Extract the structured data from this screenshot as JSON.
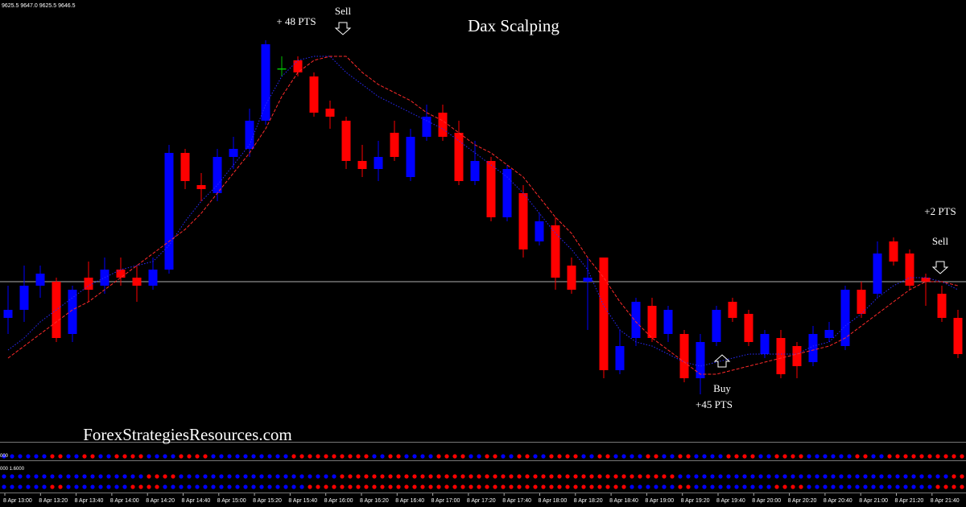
{
  "header_text": "9625.5 9647.0 9625.5 9646.5",
  "watermark": "ForexStrategiesResources.com",
  "indicator_labels": [
    "000",
    "000 1.6000"
  ],
  "annotations": [
    "+ 48 PTS",
    "Sell",
    "+2 PTS",
    "Sell",
    "Buy",
    "+45 PTS"
  ],
  "chart_data": {
    "type": "candlestick",
    "title": "Dax Scalping",
    "categories": [
      null,
      null,
      null,
      null,
      null,
      null,
      null,
      null,
      null,
      null,
      null,
      null,
      null,
      null,
      null,
      null,
      null,
      null,
      null,
      null,
      null,
      null,
      null,
      null,
      null,
      null,
      null,
      null,
      null,
      null,
      null,
      null,
      null,
      null,
      null,
      null,
      null,
      null,
      null,
      null,
      null,
      null,
      null,
      null,
      null,
      null,
      null,
      null,
      null,
      null,
      null,
      null,
      null,
      null,
      null,
      null,
      null,
      null,
      null,
      null
    ],
    "open": [
      9542,
      9546,
      9558,
      9560,
      9534,
      9562,
      9558,
      9566,
      9562,
      9558,
      9566,
      9624,
      9608,
      9604,
      9622,
      9626,
      9640,
      9666,
      9670,
      9662,
      9646,
      9640,
      9620,
      9616,
      9634,
      9612,
      9632,
      9644,
      9634,
      9610,
      9620,
      9592,
      9604,
      9580,
      9588,
      9568,
      9560,
      9572,
      9516,
      9532,
      9548,
      9534,
      9534,
      9512,
      9530,
      9550,
      9544,
      9524,
      9532,
      9528,
      9520,
      9532,
      9528,
      9556,
      9554,
      9580,
      9574,
      9562,
      9554,
      9542
    ],
    "high": [
      9558,
      9568,
      9568,
      9562,
      9558,
      9570,
      9572,
      9572,
      9568,
      9572,
      9628,
      9626,
      9614,
      9626,
      9632,
      9646,
      9680,
      9672,
      9672,
      9664,
      9650,
      9642,
      9628,
      9630,
      9640,
      9636,
      9648,
      9648,
      9640,
      9630,
      9622,
      9618,
      9608,
      9594,
      9592,
      9572,
      9572,
      9572,
      9536,
      9552,
      9552,
      9548,
      9536,
      9534,
      9548,
      9552,
      9546,
      9536,
      9536,
      9530,
      9538,
      9540,
      9558,
      9560,
      9580,
      9582,
      9576,
      9564,
      9558,
      9546
    ],
    "low": [
      9534,
      9540,
      9552,
      9530,
      9530,
      9550,
      9554,
      9558,
      9550,
      9556,
      9564,
      9606,
      9600,
      9600,
      9616,
      9622,
      9638,
      9662,
      9662,
      9642,
      9636,
      9616,
      9612,
      9610,
      9620,
      9610,
      9630,
      9630,
      9608,
      9608,
      9590,
      9590,
      9572,
      9578,
      9556,
      9554,
      9536,
      9512,
      9514,
      9528,
      9530,
      9530,
      9510,
      9504,
      9528,
      9540,
      9528,
      9522,
      9512,
      9512,
      9518,
      9530,
      9526,
      9542,
      9552,
      9568,
      9556,
      9548,
      9540,
      9522
    ],
    "close": [
      9546,
      9558,
      9564,
      9532,
      9556,
      9556,
      9566,
      9562,
      9558,
      9566,
      9624,
      9610,
      9606,
      9622,
      9626,
      9640,
      9678,
      9666,
      9664,
      9644,
      9642,
      9620,
      9616,
      9622,
      9622,
      9632,
      9642,
      9632,
      9610,
      9620,
      9592,
      9616,
      9576,
      9590,
      9562,
      9556,
      9562,
      9516,
      9528,
      9550,
      9532,
      9546,
      9512,
      9530,
      9546,
      9542,
      9530,
      9534,
      9514,
      9518,
      9534,
      9536,
      9556,
      9544,
      9574,
      9570,
      9558,
      9560,
      9542,
      9524
    ],
    "up_color": "#0000ff",
    "down_color": "#ff0000",
    "doji_color": "#00c000",
    "moving_averages": [
      {
        "color": "#2a2aff",
        "style": "dotted",
        "values": [
          9526,
          9532,
          9540,
          9546,
          9552,
          9558,
          9562,
          9566,
          9568,
          9570,
          9578,
          9590,
          9600,
          9608,
          9618,
          9628,
          9648,
          9662,
          9670,
          9672,
          9672,
          9664,
          9658,
          9652,
          9648,
          9644,
          9640,
          9636,
          9630,
          9624,
          9618,
          9612,
          9604,
          9594,
          9584,
          9576,
          9566,
          9548,
          9536,
          9530,
          9528,
          9524,
          9520,
          9518,
          9520,
          9522,
          9524,
          9524,
          9524,
          9524,
          9528,
          9530,
          9538,
          9544,
          9552,
          9558,
          9562,
          9562,
          9560,
          9556
        ]
      },
      {
        "color": "#ff2a2a",
        "style": "dashed",
        "values": [
          9522,
          9528,
          9534,
          9540,
          9546,
          9550,
          9556,
          9562,
          9568,
          9574,
          9580,
          9586,
          9594,
          9604,
          9614,
          9624,
          9636,
          9652,
          9664,
          9670,
          9672,
          9672,
          9664,
          9658,
          9654,
          9650,
          9644,
          9640,
          9634,
          9628,
          9624,
          9618,
          9612,
          9602,
          9592,
          9584,
          9572,
          9562,
          9550,
          9540,
          9532,
          9526,
          9520,
          9514,
          9514,
          9516,
          9518,
          9520,
          9522,
          9524,
          9526,
          9528,
          9532,
          9538,
          9544,
          9550,
          9556,
          9560,
          9560,
          9558
        ]
      }
    ],
    "hline": 9560,
    "ylim": [
      9480,
      9700
    ],
    "x_labels": [
      "8 Apr 13:00",
      "8 Apr 13:20",
      "8 Apr 13:40",
      "8 Apr 14:00",
      "8 Apr 14:20",
      "8 Apr 14:40",
      "8 Apr 15:00",
      "8 Apr 15:20",
      "8 Apr 15:40",
      "8 Apr 16:00",
      "8 Apr 16:20",
      "8 Apr 16:40",
      "8 Apr 17:00",
      "8 Apr 17:20",
      "8 Apr 17:40",
      "8 Apr 18:00",
      "8 Apr 18:20",
      "8 Apr 18:40",
      "8 Apr 19:00",
      "8 Apr 19:20",
      "8 Apr 19:40",
      "8 Apr 20:00",
      "8 Apr 20:20",
      "8 Apr 20:40",
      "8 Apr 21:00",
      "8 Apr 21:20",
      "8 Apr 21:40"
    ]
  }
}
